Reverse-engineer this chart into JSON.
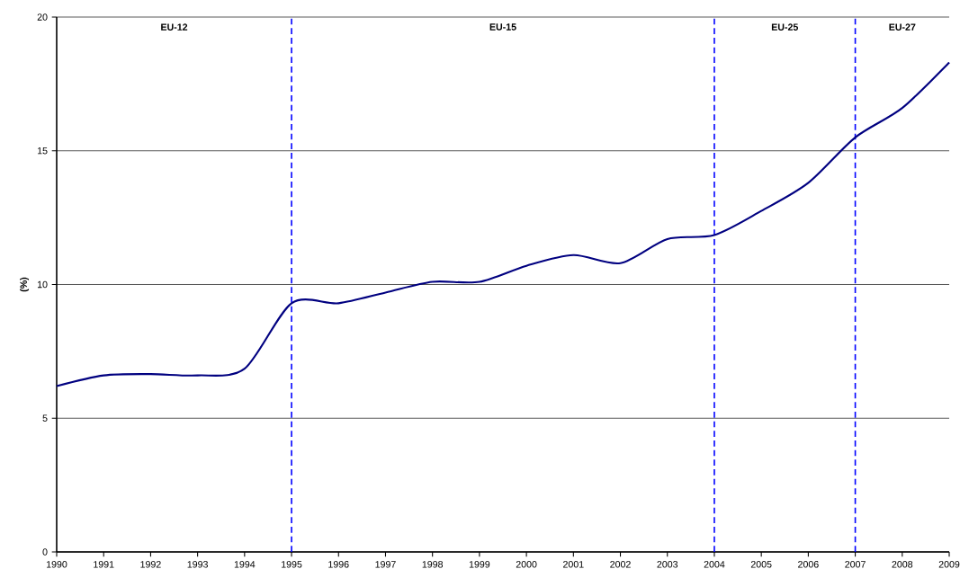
{
  "chart_data": {
    "type": "line",
    "ylabel": "(%)",
    "x": [
      1990,
      1991,
      1992,
      1993,
      1994,
      1995,
      1996,
      1997,
      1998,
      1999,
      2000,
      2001,
      2002,
      2003,
      2004,
      2005,
      2006,
      2007,
      2008,
      2009
    ],
    "series": [
      {
        "color": "#000080",
        "values": [
          6.2,
          6.6,
          6.65,
          6.6,
          6.85,
          9.3,
          9.3,
          9.7,
          10.1,
          10.1,
          10.7,
          11.1,
          10.8,
          11.7,
          11.85,
          12.75,
          13.8,
          15.5,
          16.6,
          18.3
        ]
      }
    ],
    "xlim": [
      1990,
      2009
    ],
    "ylim": [
      0,
      20
    ],
    "xticks": [
      1990,
      1991,
      1992,
      1993,
      1994,
      1995,
      1996,
      1997,
      1998,
      1999,
      2000,
      2001,
      2002,
      2003,
      2004,
      2005,
      2006,
      2007,
      2008,
      2009
    ],
    "yticks": [
      0,
      5,
      10,
      15,
      20
    ],
    "grid": "y",
    "marker": "none",
    "line_style": "solid",
    "ref_lines": [
      {
        "axis": "x",
        "value": 1995,
        "color": "#0000ff",
        "line_style": "dashed"
      },
      {
        "axis": "x",
        "value": 2004,
        "color": "#0000ff",
        "line_style": "dashed"
      },
      {
        "axis": "x",
        "value": 2007,
        "color": "#0000ff",
        "line_style": "dashed"
      }
    ],
    "annotations": [
      "EU-12",
      "EU-15",
      "EU-25",
      "EU-27"
    ]
  }
}
